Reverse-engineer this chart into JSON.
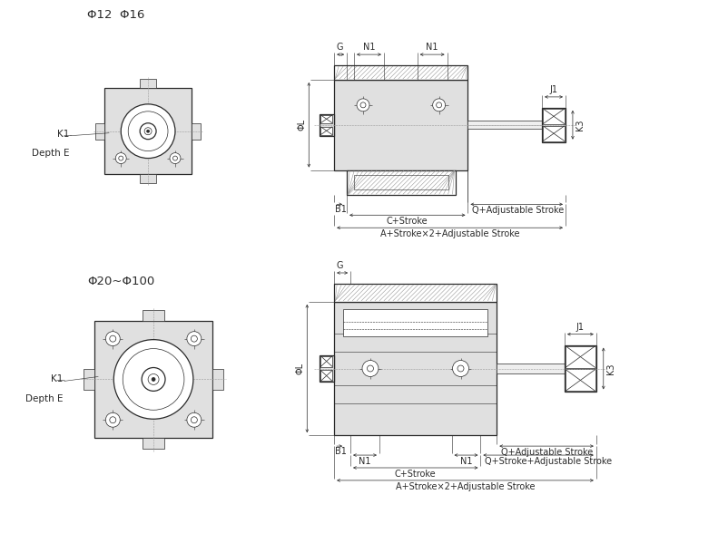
{
  "bg_color": "#ffffff",
  "line_color": "#2a2a2a",
  "fill_light": "#e0e0e0",
  "fill_mid": "#c8c8c8",
  "title1": "Φ12  Φ16",
  "title2": "Φ20~Φ100",
  "label_K1_DepthE": "K1\nDepth E",
  "label_PhiL": "ΦL",
  "label_G": "G",
  "label_N1": "N1",
  "label_B1": "B1",
  "label_J1": "J1",
  "label_K3": "K3",
  "label_Q_adj": "Q+Adjustable Stroke",
  "label_C_stroke": "C+Stroke",
  "label_A_stroke": "A+Stroke×2+Adjustable Stroke",
  "label_Q_stroke_adj": "Q+Stroke+Adjustable Stroke",
  "font_size_title": 9.5,
  "font_size_label": 7.5,
  "font_size_dim": 7.0
}
